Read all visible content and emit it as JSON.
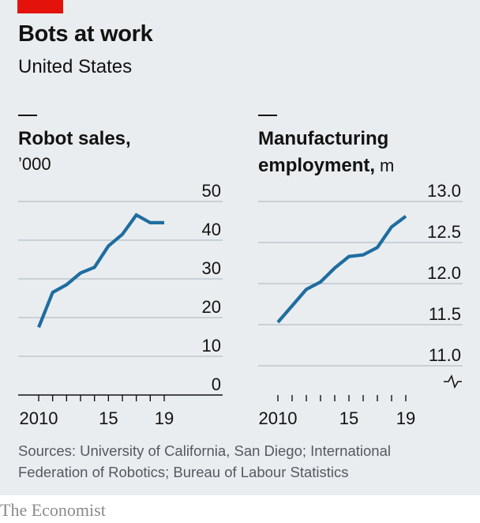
{
  "header": {
    "title": "Bots at work",
    "subtitle": "United States"
  },
  "colors": {
    "accent_red": "#e3120b",
    "line": "#1f6da0",
    "grid": "#b7c0c8",
    "background": "#e9edf0"
  },
  "chart_data": [
    {
      "type": "line",
      "title": "Robot sales,",
      "unit": "’000",
      "x": [
        2010,
        2011,
        2012,
        2013,
        2014,
        2015,
        2016,
        2017,
        2018,
        2019
      ],
      "series": [
        {
          "values": [
            17.5,
            26.5,
            28.5,
            31.5,
            33,
            38.5,
            41.5,
            46.5,
            44.5,
            44.5
          ]
        }
      ],
      "ylim": [
        0,
        50
      ],
      "yticks": [
        "50",
        "40",
        "30",
        "20",
        "10",
        "0"
      ],
      "xticks": [
        "2010",
        "15",
        "19"
      ],
      "grid": true
    },
    {
      "type": "line",
      "title": "Manufacturing",
      "title_line2": "employment,",
      "unit": "m",
      "x": [
        2010,
        2011,
        2012,
        2013,
        2014,
        2015,
        2016,
        2017,
        2018,
        2019
      ],
      "series": [
        {
          "values": [
            11.53,
            11.73,
            11.93,
            12.02,
            12.19,
            12.33,
            12.35,
            12.44,
            12.69,
            12.82
          ]
        }
      ],
      "ylim": [
        11.0,
        13.0
      ],
      "yticks": [
        "13.0",
        "12.5",
        "12.0",
        "11.5",
        "11.0"
      ],
      "xticks": [
        "2010",
        "15",
        "19"
      ],
      "axis_break": true,
      "grid": true
    }
  ],
  "footer": {
    "sources": "Sources: University of California, San Diego; International Federation of Robotics; Bureau of Labour Statistics",
    "brand": "The Economist"
  }
}
